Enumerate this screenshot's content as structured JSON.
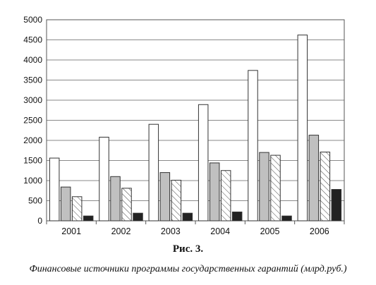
{
  "chart_data": {
    "type": "bar",
    "categories": [
      "2001",
      "2002",
      "2003",
      "2004",
      "2005",
      "2006"
    ],
    "series": [
      {
        "values": [
          1560,
          2080,
          2400,
          2890,
          3740,
          4620
        ],
        "fill": "#ffffff",
        "pattern": "none"
      },
      {
        "values": [
          840,
          1100,
          1200,
          1440,
          1700,
          2130
        ],
        "fill": "#c0c0c0",
        "pattern": "none"
      },
      {
        "values": [
          600,
          810,
          1010,
          1250,
          1630,
          1710
        ],
        "fill": "#ffffff",
        "pattern": "diagonal-hatch"
      },
      {
        "values": [
          120,
          190,
          190,
          220,
          120,
          780
        ],
        "fill": "#222222",
        "pattern": "none"
      }
    ],
    "yticks": [
      "0",
      "500",
      "1000",
      "1500",
      "2000",
      "2500",
      "3000",
      "3500",
      "4000",
      "4500",
      "5000"
    ],
    "ylim": [
      0,
      5000
    ],
    "grid": true,
    "legend": "none",
    "title": "",
    "xlabel": "",
    "ylabel": ""
  },
  "caption": {
    "figure": "Рис. 3.",
    "text": "Финансовые источники программы государственных гарантий (млрд.руб.)"
  }
}
